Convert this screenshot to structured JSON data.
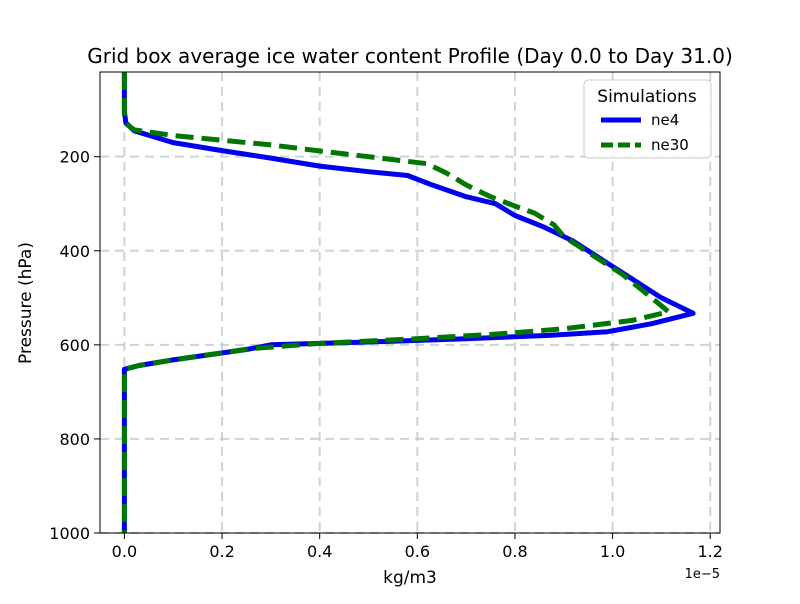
{
  "chart_data": {
    "type": "line",
    "title": "Grid box average ice water content Profile (Day 0.0 to Day 31.0)",
    "xlabel": "kg/m3",
    "ylabel": "Pressure (hPa)",
    "x_offset_text": "1e−5",
    "x_scale": 1e-05,
    "xlim": [
      -0.05,
      1.22
    ],
    "ylim": [
      1000,
      20
    ],
    "y_inverted": true,
    "grid": true,
    "x_ticks": [
      0.0,
      0.2,
      0.4,
      0.6,
      0.8,
      1.0,
      1.2
    ],
    "x_tick_labels": [
      "0.0",
      "0.2",
      "0.4",
      "0.6",
      "0.8",
      "1.0",
      "1.2"
    ],
    "y_ticks": [
      200,
      400,
      600,
      800,
      1000
    ],
    "y_tick_labels": [
      "200",
      "400",
      "600",
      "800",
      "1000"
    ],
    "legend": {
      "title": "Simulations",
      "position": "upper right"
    },
    "series": [
      {
        "name": "ne4",
        "color": "#0000ee",
        "style": "solid",
        "points": [
          [
            0.0,
            20
          ],
          [
            0.0,
            105
          ],
          [
            0.003,
            128
          ],
          [
            0.02,
            145
          ],
          [
            0.1,
            170
          ],
          [
            0.2,
            187
          ],
          [
            0.3,
            203
          ],
          [
            0.4,
            220
          ],
          [
            0.5,
            232
          ],
          [
            0.58,
            240
          ],
          [
            0.63,
            260
          ],
          [
            0.7,
            285
          ],
          [
            0.76,
            300
          ],
          [
            0.8,
            325
          ],
          [
            0.86,
            350
          ],
          [
            0.92,
            380
          ],
          [
            0.98,
            420
          ],
          [
            1.04,
            460
          ],
          [
            1.1,
            500
          ],
          [
            1.165,
            533
          ],
          [
            1.08,
            555
          ],
          [
            0.99,
            572
          ],
          [
            0.87,
            580
          ],
          [
            0.7,
            587
          ],
          [
            0.5,
            594
          ],
          [
            0.3,
            600
          ],
          [
            0.25,
            610
          ],
          [
            0.1,
            632
          ],
          [
            0.03,
            644
          ],
          [
            0.0,
            652
          ],
          [
            0.0,
            1000
          ]
        ]
      },
      {
        "name": "ne30",
        "color": "#007700",
        "style": "dashed",
        "points": [
          [
            0.0,
            20
          ],
          [
            0.0,
            110
          ],
          [
            0.003,
            130
          ],
          [
            0.02,
            143
          ],
          [
            0.1,
            155
          ],
          [
            0.2,
            165
          ],
          [
            0.3,
            175
          ],
          [
            0.4,
            188
          ],
          [
            0.5,
            200
          ],
          [
            0.62,
            215
          ],
          [
            0.66,
            235
          ],
          [
            0.7,
            260
          ],
          [
            0.75,
            285
          ],
          [
            0.8,
            305
          ],
          [
            0.84,
            320
          ],
          [
            0.88,
            345
          ],
          [
            0.9,
            370
          ],
          [
            0.96,
            410
          ],
          [
            1.02,
            450
          ],
          [
            1.08,
            500
          ],
          [
            1.115,
            530
          ],
          [
            1.04,
            548
          ],
          [
            0.9,
            566
          ],
          [
            0.75,
            578
          ],
          [
            0.58,
            588
          ],
          [
            0.4,
            597
          ],
          [
            0.26,
            608
          ],
          [
            0.1,
            632
          ],
          [
            0.03,
            644
          ],
          [
            0.0,
            652
          ],
          [
            0.0,
            1000
          ]
        ]
      }
    ]
  }
}
